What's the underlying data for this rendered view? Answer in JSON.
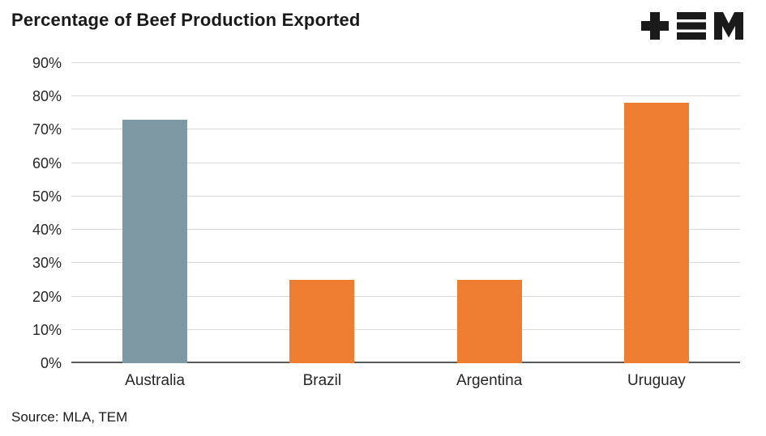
{
  "header": {
    "title": "Percentage of Beef Production Exported",
    "logo_name": "tem-logo"
  },
  "footer": {
    "source": "Source: MLA, TEM"
  },
  "colors": {
    "bar_australia": "#7E99A3",
    "bar_orange": "#ED7D31",
    "gridline": "#D9D9D9",
    "axis": "#595959",
    "text": "#262626",
    "logo": "#1a1a1a"
  },
  "chart_data": {
    "type": "bar",
    "title": "Percentage of Beef Production Exported",
    "categories": [
      "Australia",
      "Brazil",
      "Argentina",
      "Uruguay"
    ],
    "values": [
      73,
      25,
      25,
      78
    ],
    "bar_colors": [
      "#7E99A3",
      "#ED7D31",
      "#ED7D31",
      "#ED7D31"
    ],
    "xlabel": "",
    "ylabel": "",
    "ylim": [
      0,
      90
    ],
    "ytick_step": 10,
    "ytick_labels": [
      "0%",
      "10%",
      "20%",
      "30%",
      "40%",
      "50%",
      "60%",
      "70%",
      "80%",
      "90%"
    ],
    "grid": true,
    "legend": false,
    "unit": "%"
  }
}
